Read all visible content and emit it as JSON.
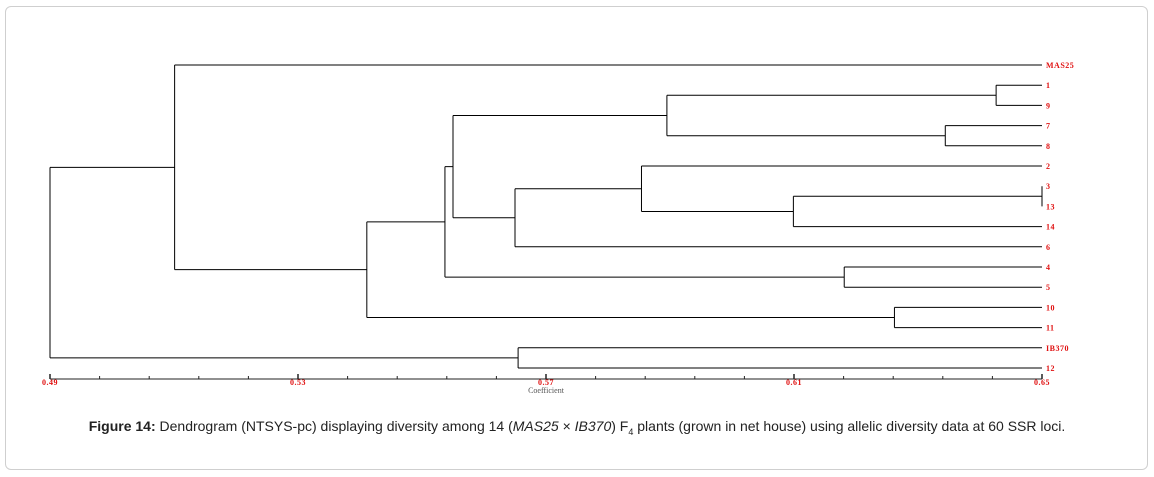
{
  "caption": {
    "label": "Figure 14:",
    "part1": " Dendrogram (NTSYS-pc) displaying diversity among 14 (",
    "cross_female": "MAS25",
    "cross_sep": " × ",
    "cross_male": "IB370",
    "part2": ") F",
    "subscript": "4",
    "part3": " plants (grown in net house) using allelic diversity data at 60 SSR loci."
  },
  "chart_data": {
    "type": "dendrogram",
    "xlabel": "Coefficient",
    "xlim": [
      0.49,
      0.65
    ],
    "ticks": [
      {
        "value": 0.49,
        "label": "0.49"
      },
      {
        "value": 0.53,
        "label": "0.53"
      },
      {
        "value": 0.57,
        "label": "0.57"
      },
      {
        "value": 0.61,
        "label": "0.61"
      },
      {
        "value": 0.65,
        "label": "0.65"
      }
    ],
    "minor_step": 0.008,
    "leaves": [
      "MAS25",
      "1",
      "9",
      "7",
      "8",
      "2",
      "3",
      "13",
      "14",
      "6",
      "4",
      "5",
      "10",
      "11",
      "IB370",
      "12"
    ],
    "merges": [
      {
        "id": "n1",
        "a": "1",
        "b": "9",
        "height": 0.6426
      },
      {
        "id": "n2",
        "a": "7",
        "b": "8",
        "height": 0.6344
      },
      {
        "id": "n3",
        "a": "3",
        "b": "13",
        "height": 0.65
      },
      {
        "id": "n4",
        "a": "n3",
        "b": "14",
        "height": 0.6099
      },
      {
        "id": "n5",
        "a": "2",
        "b": "n4",
        "height": 0.5854
      },
      {
        "id": "n6",
        "a": "n5",
        "b": "6",
        "height": 0.565
      },
      {
        "id": "n7",
        "a": "n1",
        "b": "n2",
        "height": 0.5895
      },
      {
        "id": "n8",
        "a": "n7",
        "b": "n6",
        "height": 0.555
      },
      {
        "id": "n9",
        "a": "4",
        "b": "5",
        "height": 0.6181
      },
      {
        "id": "n10",
        "a": "n8",
        "b": "n9",
        "height": 0.5537
      },
      {
        "id": "n11",
        "a": "10",
        "b": "11",
        "height": 0.6262
      },
      {
        "id": "n12",
        "a": "n10",
        "b": "n11",
        "height": 0.5411
      },
      {
        "id": "n13",
        "a": "MAS25",
        "b": "n12",
        "height": 0.5101
      },
      {
        "id": "n14",
        "a": "IB370",
        "b": "12",
        "height": 0.5655
      },
      {
        "id": "n15",
        "a": "n13",
        "b": "n14",
        "height": 0.49
      }
    ],
    "colors": {
      "lines": "#000000",
      "labels": "#e01010",
      "axis": "#222222"
    }
  }
}
